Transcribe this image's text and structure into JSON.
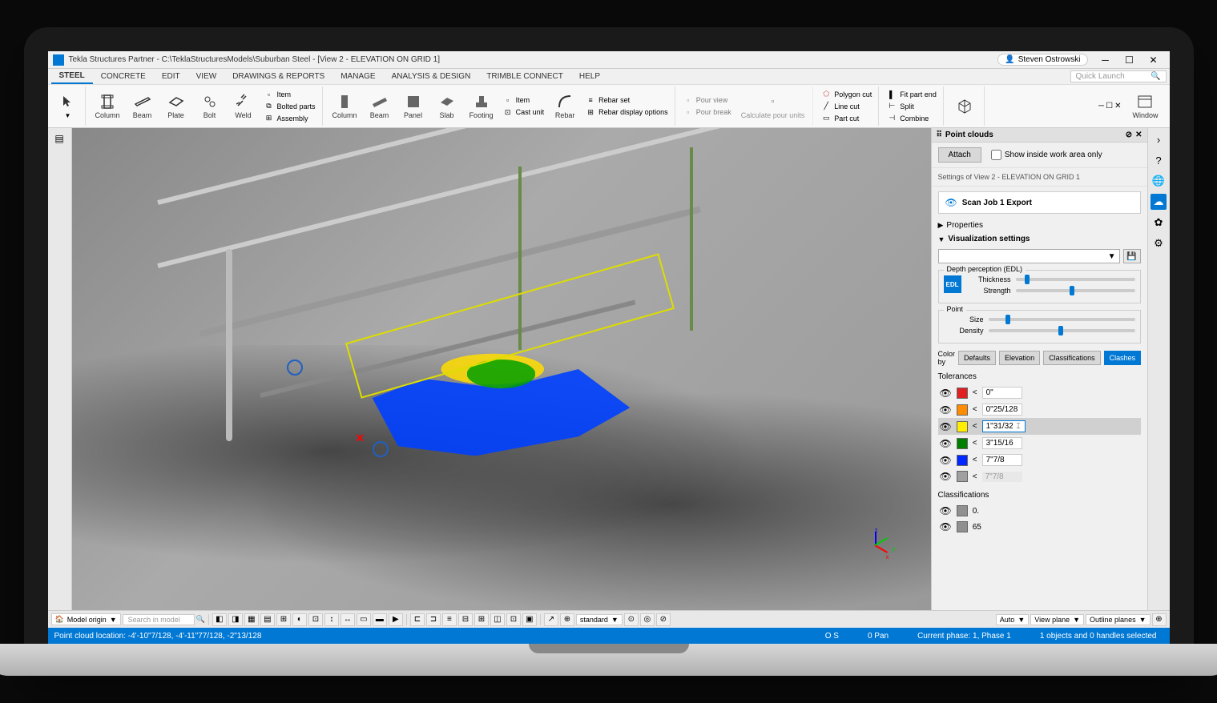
{
  "titlebar": {
    "title": "Tekla Structures Partner - C:\\TeklaStructuresModels\\Suburban Steel - [View 2 - ELEVATION ON GRID 1]",
    "user": "Steven Ostrowski"
  },
  "menu": {
    "tabs": [
      "STEEL",
      "CONCRETE",
      "EDIT",
      "VIEW",
      "DRAWINGS & REPORTS",
      "MANAGE",
      "ANALYSIS & DESIGN",
      "TRIMBLE CONNECT",
      "HELP"
    ],
    "active_index": 0,
    "quick_launch_placeholder": "Quick Launch"
  },
  "ribbon": {
    "steel": {
      "column": "Column",
      "beam": "Beam",
      "plate": "Plate",
      "bolt": "Bolt",
      "weld": "Weld",
      "item": "Item",
      "bolted_parts": "Bolted parts",
      "assembly": "Assembly"
    },
    "concrete": {
      "column": "Column",
      "beam": "Beam",
      "panel": "Panel",
      "slab": "Slab",
      "footing": "Footing",
      "item": "Item",
      "cast_unit": "Cast unit",
      "rebar": "Rebar",
      "rebar_set": "Rebar set",
      "rebar_display": "Rebar display options"
    },
    "pour": {
      "pour_view": "Pour view",
      "pour_break": "Pour break",
      "calculate": "Calculate pour units"
    },
    "cut": {
      "polygon": "Polygon cut",
      "line": "Line cut",
      "part": "Part cut"
    },
    "fit": {
      "fit_part_end": "Fit part end",
      "split": "Split",
      "combine": "Combine"
    },
    "window": "Window"
  },
  "panel": {
    "title": "Point clouds",
    "attach": "Attach",
    "show_inside": "Show inside work area only",
    "settings_label": "Settings of View 2 - ELEVATION ON GRID 1",
    "scan_job": "Scan Job 1 Export",
    "properties": "Properties",
    "viz_settings": "Visualization settings",
    "edl_legend": "Depth perception (EDL)",
    "edl_badge": "EDL",
    "thickness": "Thickness",
    "strength": "Strength",
    "point_legend": "Point",
    "size": "Size",
    "density": "Density",
    "colorby_label": "Color by",
    "colorby_options": [
      "Defaults",
      "Elevation",
      "Classifications",
      "Clashes"
    ],
    "colorby_active": 3,
    "tolerances_label": "Tolerances",
    "tolerances": [
      {
        "color": "#e02020",
        "value": "0\"",
        "editing": false
      },
      {
        "color": "#ff8c00",
        "value": "0\"25/128",
        "editing": false
      },
      {
        "color": "#ffee00",
        "value": "1\"31/32",
        "editing": true
      },
      {
        "color": "#008000",
        "value": "3\"15/16",
        "editing": false
      },
      {
        "color": "#0028ff",
        "value": "7\"7/8",
        "editing": false
      },
      {
        "color": "#a0a0a0",
        "value": "7\"7/8",
        "editing": false,
        "disabled": true
      }
    ],
    "classifications_label": "Classifications",
    "classifications": [
      {
        "color": "#909090",
        "label": "0."
      },
      {
        "color": "#909090",
        "label": "65"
      }
    ],
    "sliders": {
      "thickness": 8,
      "strength": 45,
      "size": 12,
      "density": 48
    }
  },
  "bottom": {
    "model_origin": "Model origin",
    "search_placeholder": "Search in model",
    "standard": "standard",
    "auto": "Auto",
    "view_plane": "View plane",
    "outline_planes": "Outline planes"
  },
  "status": {
    "location": "Point cloud location: -4'-10\"7/128, -4'-11\"77/128, -2\"13/128",
    "os": "O    S",
    "pan": "0 Pan",
    "phase": "Current phase: 1, Phase 1",
    "selection": "1 objects and 0 handles selected"
  }
}
